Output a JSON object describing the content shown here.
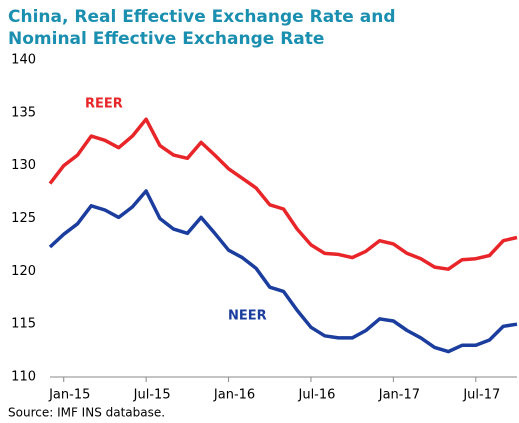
{
  "chart_data": {
    "type": "line",
    "title": [
      "China, Real Effective Exchange Rate and",
      "Nominal  Effective Exchange Rate"
    ],
    "source": "Source: IMF INS database.",
    "categories": [
      null,
      "Jan-15",
      null,
      null,
      null,
      null,
      null,
      "Jul-15",
      null,
      null,
      null,
      null,
      null,
      "Jan-16",
      null,
      null,
      null,
      null,
      null,
      "Jul-16",
      null,
      null,
      null,
      null,
      null,
      "Jan-17",
      null,
      null,
      null,
      null,
      null,
      "Jul-17",
      null,
      null,
      null
    ],
    "series": [
      {
        "name": "REER",
        "color": "#e8262a",
        "values": [
          128.3,
          130,
          131,
          132.8,
          132.4,
          131.7,
          132.8,
          134.4,
          131.9,
          131,
          130.7,
          132.2,
          131,
          129.7,
          128.8,
          127.9,
          126.3,
          125.9,
          124,
          122.5,
          121.7,
          121.6,
          121.3,
          121.9,
          122.9,
          122.6,
          121.7,
          121.2,
          120.4,
          120.2,
          121.1,
          121.2,
          121.5,
          122.9,
          123.2
        ]
      },
      {
        "name": "NEER",
        "color": "#1a3d9e",
        "values": [
          122.3,
          123.5,
          124.5,
          126.2,
          125.8,
          125.1,
          126.1,
          127.6,
          125,
          124,
          123.6,
          125.1,
          123.6,
          122,
          121.3,
          120.3,
          118.5,
          118.1,
          116.3,
          114.7,
          113.9,
          113.7,
          113.7,
          114.4,
          115.5,
          115.3,
          114.4,
          113.7,
          112.8,
          112.4,
          113,
          113,
          113.5,
          114.8,
          115
        ]
      }
    ],
    "ylim": [
      110,
      140
    ],
    "yticks": [
      110,
      115,
      120,
      125,
      130,
      135,
      140
    ],
    "grid": false
  }
}
